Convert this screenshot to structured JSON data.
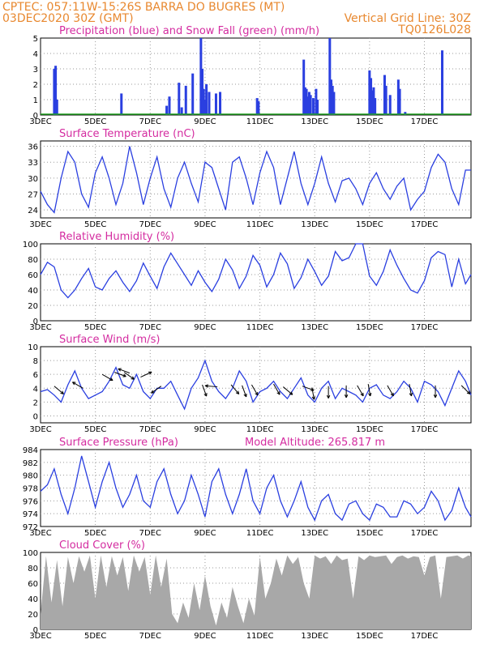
{
  "header": {
    "line1_left": "CPTEC:   057:11W-15:26S  BARRA DO BUGRES (MT)",
    "line2_left": "03DEC2020 30Z (GMT)",
    "line2_right": "Vertical Grid Line: 30Z",
    "line3_right": "TQ0126L028"
  },
  "colors": {
    "header": "#e8882f",
    "title": "#d42ca0",
    "line": "#2a3fe0",
    "bar_precip": "#2a3fe0",
    "bar_snow": "#1fa01f",
    "cloud": "#a8a8a8",
    "grid": "#9a9a9a"
  },
  "x_axis": {
    "ticks": [
      "3DEC",
      "5DEC",
      "7DEC",
      "9DEC",
      "11DEC",
      "13DEC",
      "15DEC",
      "17DEC"
    ],
    "tick_days": [
      0,
      2,
      4,
      6,
      8,
      10,
      12,
      14
    ],
    "range_days": [
      0,
      15.7
    ]
  },
  "chart_data": [
    {
      "type": "bar",
      "title": "Precipitation (blue) and Snow Fall (green) (mm/h)",
      "ylim": [
        0,
        5
      ],
      "yticks": [
        0,
        1,
        2,
        3,
        4,
        5
      ],
      "grid": true,
      "series": [
        {
          "name": "Precipitation",
          "x": [
            0.5,
            0.55,
            0.6,
            2.95,
            4.6,
            4.7,
            5.05,
            5.15,
            5.3,
            5.55,
            5.85,
            5.9,
            5.95,
            6.0,
            6.05,
            6.15,
            6.4,
            6.55,
            7.9,
            7.95,
            9.6,
            9.65,
            9.7,
            9.75,
            9.8,
            9.85,
            9.95,
            10.05,
            10.1,
            10.55,
            10.6,
            10.65,
            10.7,
            12.0,
            12.05,
            12.1,
            12.15,
            12.2,
            12.55,
            12.6,
            12.75,
            13.05,
            13.1,
            13.3,
            14.65
          ],
          "y": [
            3.0,
            3.2,
            1.0,
            1.4,
            0.6,
            1.2,
            2.1,
            0.5,
            1.9,
            2.7,
            5.0,
            3.0,
            1.7,
            1.0,
            2.0,
            1.5,
            1.4,
            1.5,
            1.1,
            0.9,
            3.6,
            1.8,
            1.7,
            1.2,
            1.5,
            1.3,
            1.1,
            1.7,
            1.0,
            5.0,
            2.3,
            1.9,
            1.5,
            2.9,
            2.4,
            1.6,
            1.8,
            1.1,
            2.6,
            1.9,
            1.3,
            2.3,
            1.7,
            0.2,
            4.2
          ]
        },
        {
          "name": "Snow Fall",
          "x": [],
          "y": []
        }
      ]
    },
    {
      "type": "line",
      "title": "Surface Temperature (nC)",
      "ylim": [
        22.5,
        37
      ],
      "yticks": [
        24,
        27,
        30,
        33,
        36
      ],
      "grid": true,
      "series": [
        {
          "name": "Temperature",
          "x": [
            0,
            0.25,
            0.5,
            0.75,
            1,
            1.25,
            1.5,
            1.75,
            2,
            2.25,
            2.5,
            2.75,
            3,
            3.25,
            3.5,
            3.75,
            4,
            4.25,
            4.5,
            4.75,
            5,
            5.25,
            5.5,
            5.75,
            6,
            6.25,
            6.5,
            6.75,
            7,
            7.25,
            7.5,
            7.75,
            8,
            8.25,
            8.5,
            8.75,
            9,
            9.25,
            9.5,
            9.75,
            10,
            10.25,
            10.5,
            10.75,
            11,
            11.25,
            11.5,
            11.75,
            12,
            12.25,
            12.5,
            12.75,
            13,
            13.25,
            13.5,
            13.75,
            14,
            14.25,
            14.5,
            14.75,
            15,
            15.25,
            15.5,
            15.7
          ],
          "y": [
            27.5,
            25,
            23.5,
            30,
            35,
            33,
            27,
            24.5,
            31,
            34,
            30,
            25,
            29,
            36,
            31,
            25,
            30,
            34,
            28,
            24.5,
            30,
            33,
            29,
            25.5,
            33,
            32,
            28,
            24,
            33,
            34,
            30,
            25,
            31,
            35,
            32,
            25,
            30,
            35,
            29,
            25,
            29,
            34,
            29,
            25.5,
            29.5,
            30,
            28,
            25,
            29,
            31,
            28,
            26,
            28.5,
            30,
            24,
            26,
            27.5,
            32,
            34.5,
            33,
            28,
            25,
            31.5,
            31.5
          ]
        }
      ]
    },
    {
      "type": "line",
      "title": "Relative Humidity (%)",
      "ylim": [
        0,
        100
      ],
      "yticks": [
        0,
        20,
        40,
        60,
        80,
        100
      ],
      "grid": true,
      "series": [
        {
          "name": "Relative Humidity",
          "x": [
            0,
            0.25,
            0.5,
            0.75,
            1,
            1.25,
            1.5,
            1.75,
            2,
            2.25,
            2.5,
            2.75,
            3,
            3.25,
            3.5,
            3.75,
            4,
            4.25,
            4.5,
            4.75,
            5,
            5.25,
            5.5,
            5.75,
            6,
            6.25,
            6.5,
            6.75,
            7,
            7.25,
            7.5,
            7.75,
            8,
            8.25,
            8.5,
            8.75,
            9,
            9.25,
            9.5,
            9.75,
            10,
            10.25,
            10.5,
            10.75,
            11,
            11.25,
            11.5,
            11.75,
            12,
            12.25,
            12.5,
            12.75,
            13,
            13.25,
            13.5,
            13.75,
            14,
            14.25,
            14.5,
            14.75,
            15,
            15.25,
            15.5,
            15.7
          ],
          "y": [
            60,
            76,
            70,
            40,
            30,
            40,
            55,
            68,
            44,
            40,
            55,
            65,
            50,
            38,
            52,
            75,
            58,
            42,
            70,
            88,
            74,
            60,
            46,
            65,
            50,
            38,
            54,
            80,
            66,
            42,
            58,
            85,
            72,
            44,
            60,
            88,
            74,
            42,
            56,
            80,
            64,
            46,
            58,
            90,
            78,
            82,
            100,
            100,
            58,
            46,
            64,
            92,
            72,
            55,
            40,
            36,
            52,
            82,
            90,
            86,
            44,
            80,
            48,
            60
          ]
        }
      ]
    },
    {
      "type": "line",
      "title": "Surface Wind (m/s)",
      "ylim": [
        -1,
        10
      ],
      "yticks": [
        0,
        2,
        4,
        6,
        8,
        10
      ],
      "grid": true,
      "series": [
        {
          "name": "Wind speed",
          "x": [
            0,
            0.25,
            0.5,
            0.75,
            1,
            1.25,
            1.5,
            1.75,
            2,
            2.25,
            2.5,
            2.75,
            3,
            3.25,
            3.5,
            3.75,
            4,
            4.25,
            4.5,
            4.75,
            5,
            5.25,
            5.5,
            5.75,
            6,
            6.25,
            6.5,
            6.75,
            7,
            7.25,
            7.5,
            7.75,
            8,
            8.25,
            8.5,
            8.75,
            9,
            9.25,
            9.5,
            9.75,
            10,
            10.25,
            10.5,
            10.75,
            11,
            11.25,
            11.5,
            11.75,
            12,
            12.25,
            12.5,
            12.75,
            13,
            13.25,
            13.5,
            13.75,
            14,
            14.25,
            14.5,
            14.75,
            15,
            15.25,
            15.5,
            15.7
          ],
          "y": [
            3.5,
            3.8,
            3,
            2,
            4.5,
            6.5,
            4,
            2.5,
            3,
            3.5,
            5,
            7,
            4.5,
            4,
            6,
            3.5,
            2.5,
            4,
            4,
            5,
            3,
            1,
            4,
            5.5,
            8,
            5,
            3.5,
            2.5,
            4,
            6.5,
            5,
            2,
            3.5,
            4,
            5,
            3.5,
            2.5,
            4,
            5.5,
            3,
            2,
            4,
            5,
            2.5,
            4,
            3.5,
            3,
            2,
            4,
            4.5,
            3,
            2.5,
            3.5,
            5,
            4,
            2,
            5,
            4.5,
            3.5,
            1.5,
            4,
            6.5,
            5,
            3
          ]
        }
      ],
      "arrows": [
        [
          0.5,
          4.3,
          -40
        ],
        [
          1.55,
          4,
          150
        ],
        [
          2.25,
          6,
          -30
        ],
        [
          2.7,
          6.3,
          -20
        ],
        [
          3.05,
          6.3,
          -35
        ],
        [
          3.25,
          6.2,
          160
        ],
        [
          3.65,
          5.6,
          25
        ],
        [
          4.4,
          4.3,
          -145
        ],
        [
          5.9,
          4.5,
          -70
        ],
        [
          6.45,
          4.2,
          175
        ],
        [
          6.95,
          4.5,
          -50
        ],
        [
          7.35,
          4.4,
          -70
        ],
        [
          7.7,
          4.5,
          -60
        ],
        [
          8.5,
          4.6,
          -60
        ],
        [
          8.85,
          4.2,
          -40
        ],
        [
          9.55,
          4.3,
          -20
        ],
        [
          9.9,
          4.1,
          -80
        ],
        [
          10.5,
          4.3,
          -90
        ],
        [
          11.15,
          4.4,
          -90
        ],
        [
          11.55,
          4.4,
          -60
        ],
        [
          11.95,
          4.6,
          -80
        ],
        [
          12.65,
          4.4,
          -60
        ],
        [
          13.45,
          4.6,
          -80
        ],
        [
          14.4,
          4.4,
          -90
        ],
        [
          15.35,
          4.4,
          -45
        ]
      ]
    },
    {
      "type": "line",
      "title": "Surface Pressure (hPa)",
      "annotation": "Model Altitude: 265.817  m",
      "ylim": [
        972,
        984
      ],
      "yticks": [
        972,
        974,
        976,
        978,
        980,
        982,
        984
      ],
      "grid": true,
      "series": [
        {
          "name": "Surface Pressure",
          "x": [
            0,
            0.25,
            0.5,
            0.75,
            1,
            1.25,
            1.5,
            1.75,
            2,
            2.25,
            2.5,
            2.75,
            3,
            3.25,
            3.5,
            3.75,
            4,
            4.25,
            4.5,
            4.75,
            5,
            5.25,
            5.5,
            5.75,
            6,
            6.25,
            6.5,
            6.75,
            7,
            7.25,
            7.5,
            7.75,
            8,
            8.25,
            8.5,
            8.75,
            9,
            9.25,
            9.5,
            9.75,
            10,
            10.25,
            10.5,
            10.75,
            11,
            11.25,
            11.5,
            11.75,
            12,
            12.25,
            12.5,
            12.75,
            13,
            13.25,
            13.5,
            13.75,
            14,
            14.25,
            14.5,
            14.75,
            15,
            15.25,
            15.5,
            15.7
          ],
          "y": [
            977.5,
            978.5,
            981,
            977,
            974,
            978,
            983,
            979,
            975,
            979,
            982,
            978,
            975,
            977,
            980,
            976,
            975,
            979,
            981,
            977,
            974,
            976,
            980,
            977,
            973.5,
            979,
            981,
            977,
            974,
            977,
            981,
            976,
            974,
            978,
            980,
            976,
            973.5,
            976,
            979,
            975,
            973,
            976,
            977,
            974,
            973,
            975.5,
            976,
            974,
            973,
            975.5,
            975,
            973.5,
            973.5,
            976,
            975.5,
            974,
            975,
            977.5,
            976,
            973,
            974.5,
            978,
            975,
            973.5
          ]
        }
      ]
    },
    {
      "type": "area",
      "title": "Cloud Cover (%)",
      "ylim": [
        0,
        100
      ],
      "yticks": [
        0,
        20,
        40,
        60,
        80,
        100
      ],
      "grid": true,
      "series": [
        {
          "name": "Cloud Cover",
          "x": [
            0,
            0.2,
            0.4,
            0.6,
            0.8,
            1,
            1.2,
            1.4,
            1.6,
            1.8,
            2,
            2.2,
            2.4,
            2.6,
            2.8,
            3,
            3.2,
            3.4,
            3.6,
            3.8,
            4,
            4.2,
            4.4,
            4.6,
            4.8,
            5,
            5.2,
            5.4,
            5.6,
            5.8,
            6,
            6.2,
            6.4,
            6.6,
            6.8,
            7,
            7.2,
            7.4,
            7.6,
            7.8,
            8,
            8.2,
            8.4,
            8.6,
            8.8,
            9,
            9.2,
            9.4,
            9.6,
            9.8,
            10,
            10.2,
            10.4,
            10.6,
            10.8,
            11,
            11.2,
            11.4,
            11.6,
            11.8,
            12,
            12.2,
            12.4,
            12.6,
            12.8,
            13,
            13.2,
            13.4,
            13.6,
            13.8,
            14,
            14.2,
            14.4,
            14.6,
            14.8,
            15,
            15.2,
            15.4,
            15.6,
            15.7
          ],
          "y": [
            20,
            95,
            35,
            90,
            30,
            94,
            60,
            95,
            75,
            96,
            40,
            96,
            55,
            95,
            70,
            94,
            50,
            96,
            75,
            94,
            45,
            96,
            55,
            92,
            20,
            8,
            35,
            15,
            60,
            25,
            70,
            30,
            5,
            35,
            15,
            55,
            30,
            8,
            40,
            18,
            94,
            40,
            60,
            92,
            70,
            96,
            85,
            94,
            60,
            40,
            96,
            92,
            95,
            85,
            96,
            90,
            92,
            40,
            95,
            90,
            96,
            94,
            95,
            96,
            85,
            94,
            96,
            92,
            95,
            94,
            70,
            94,
            96,
            40,
            94,
            95,
            96,
            92,
            96,
            95
          ]
        }
      ]
    }
  ]
}
